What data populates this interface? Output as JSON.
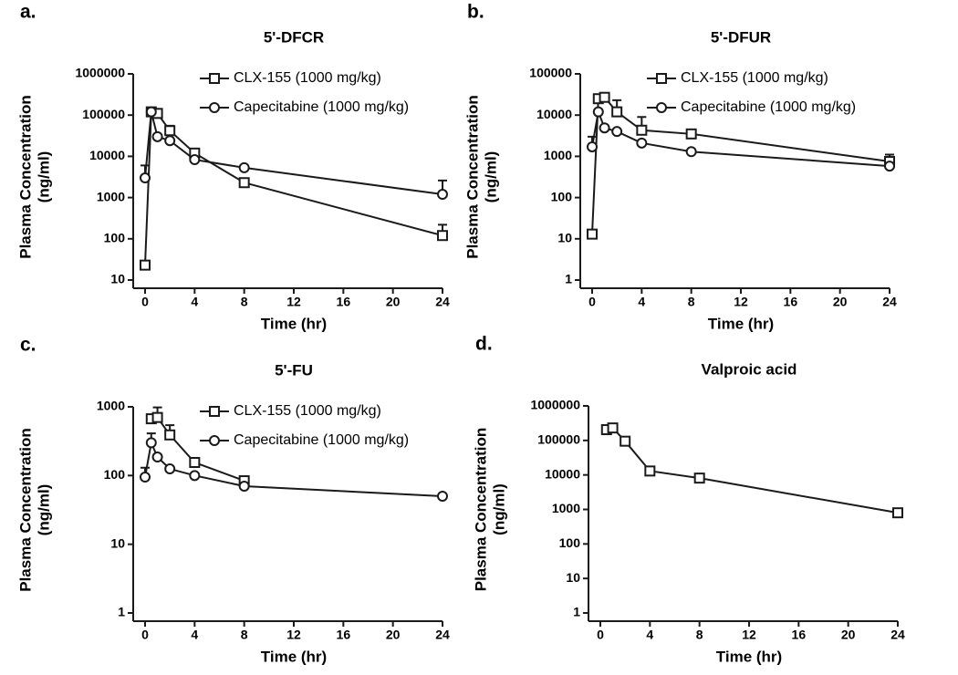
{
  "chart_data": [
    {
      "type": "line",
      "panel_label": "a.",
      "title": "5'-DFCR",
      "xlabel": "Time (hr)",
      "ylabel": [
        "Plasma Concentration",
        "(ng/ml)"
      ],
      "x": [
        0,
        0.5,
        1,
        2,
        4,
        8,
        24
      ],
      "xlim": [
        0,
        24
      ],
      "xticks": [
        0,
        4,
        8,
        12,
        16,
        20,
        24
      ],
      "ylim": [
        10,
        1000000
      ],
      "yticks": [
        10,
        100,
        1000,
        10000,
        100000,
        1000000
      ],
      "log_y": true,
      "legend": "top",
      "series": [
        {
          "name": "CLX-155 (1000 mg/kg)",
          "color": "#1a1a1a",
          "marker": "square",
          "values": [
            23,
            120000,
            110000,
            42000,
            12000,
            2300,
            120
          ],
          "errors": [
            null,
            null,
            null,
            13000,
            3000,
            null,
            100
          ]
        },
        {
          "name": "Capecitabine (1000 mg/kg)",
          "color": "#1a1a1a",
          "marker": "circle",
          "values": [
            3000,
            120000,
            30000,
            24000,
            8300,
            5300,
            1200
          ],
          "errors": [
            3000,
            null,
            null,
            null,
            null,
            null,
            1400
          ]
        }
      ]
    },
    {
      "type": "line",
      "panel_label": "b.",
      "title": "5'-DFUR",
      "xlabel": "Time (hr)",
      "ylabel": [
        "Plasma Concentration",
        "(ng/ml)"
      ],
      "x": [
        0,
        0.5,
        1,
        2,
        4,
        8,
        24
      ],
      "xlim": [
        0,
        24
      ],
      "xticks": [
        0,
        4,
        8,
        12,
        16,
        20,
        24
      ],
      "ylim": [
        1,
        100000
      ],
      "yticks": [
        1,
        10,
        100,
        1000,
        10000,
        100000
      ],
      "log_y": true,
      "legend": "top",
      "series": [
        {
          "name": "CLX-155 (1000 mg/kg)",
          "color": "#1a1a1a",
          "marker": "square",
          "values": [
            13,
            25000,
            27000,
            12000,
            4300,
            3500,
            750
          ],
          "errors": [
            null,
            null,
            null,
            11000,
            4700,
            null,
            350
          ]
        },
        {
          "name": "Capecitabine (1000 mg/kg)",
          "color": "#1a1a1a",
          "marker": "circle",
          "values": [
            1700,
            12000,
            4900,
            4000,
            2100,
            1300,
            580
          ],
          "errors": [
            1300,
            null,
            null,
            null,
            null,
            null,
            null
          ]
        }
      ]
    },
    {
      "type": "line",
      "panel_label": "c.",
      "title": "5'-FU",
      "xlabel": "Time (hr)",
      "ylabel": [
        "Plasma Concentration",
        "(ng/ml)"
      ],
      "x": [
        0,
        0.5,
        1,
        2,
        4,
        8,
        24
      ],
      "xlim": [
        0,
        24
      ],
      "xticks": [
        0,
        4,
        8,
        12,
        16,
        20,
        24
      ],
      "ylim": [
        1,
        1000
      ],
      "yticks": [
        1,
        10,
        100,
        1000
      ],
      "log_y": true,
      "legend": "top",
      "series": [
        {
          "name": "CLX-155 (1000 mg/kg)",
          "color": "#1a1a1a",
          "marker": "square",
          "values": [
            null,
            670,
            700,
            390,
            155,
            84,
            null
          ],
          "errors": [
            null,
            null,
            280,
            150,
            null,
            null,
            null
          ]
        },
        {
          "name": "Capecitabine (1000 mg/kg)",
          "color": "#1a1a1a",
          "marker": "circle",
          "values": [
            95,
            300,
            186,
            125,
            100,
            70,
            50
          ],
          "errors": [
            35,
            110,
            null,
            null,
            null,
            null,
            null
          ]
        }
      ]
    },
    {
      "type": "line",
      "panel_label": "d.",
      "title": "Valproic acid",
      "xlabel": "Time (hr)",
      "ylabel": [
        "Plasma Concentration",
        "(ng/ml)"
      ],
      "x": [
        0.5,
        1,
        2,
        4,
        8,
        24
      ],
      "xlim": [
        0,
        24
      ],
      "xticks": [
        0,
        4,
        8,
        12,
        16,
        20,
        24
      ],
      "ylim": [
        1,
        1000000
      ],
      "yticks": [
        1,
        10,
        100,
        1000,
        10000,
        100000,
        1000000
      ],
      "log_y": true,
      "series": [
        {
          "color": "#1a1a1a",
          "marker": "square",
          "values": [
            205000,
            230000,
            95000,
            13000,
            8100,
            800
          ],
          "errors": [
            null,
            null,
            null,
            null,
            2000,
            null
          ]
        }
      ]
    }
  ]
}
